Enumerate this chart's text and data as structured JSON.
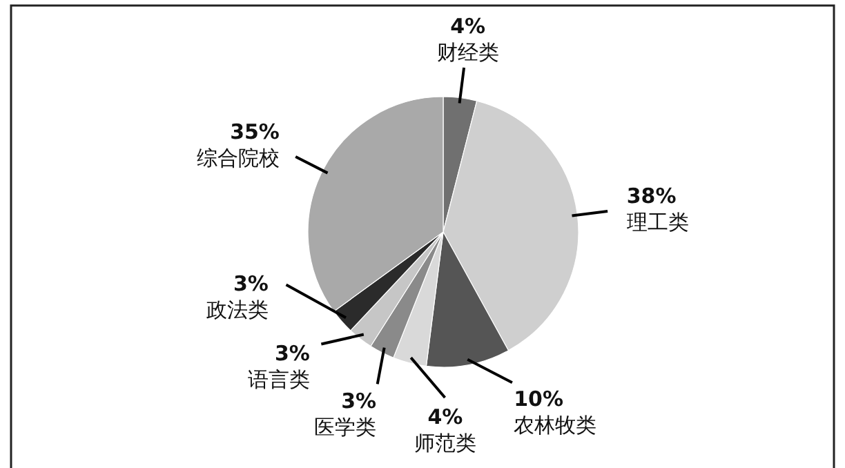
{
  "chart_data": {
    "type": "pie",
    "categories": [
      "财经类",
      "理工类",
      "农林牧类",
      "师范类",
      "医学类",
      "语言类",
      "政法类",
      "综合院校"
    ],
    "values": [
      4,
      38,
      10,
      4,
      3,
      3,
      3,
      35
    ],
    "colors": [
      "#707070",
      "#cfcfcf",
      "#555555",
      "#d9d9d9",
      "#8a8a8a",
      "#c6c6c6",
      "#2b2b2b",
      "#a9a9a9"
    ],
    "value_labels": [
      "4%",
      "38%",
      "10%",
      "4%",
      "3%",
      "3%",
      "3%",
      "35%"
    ]
  }
}
